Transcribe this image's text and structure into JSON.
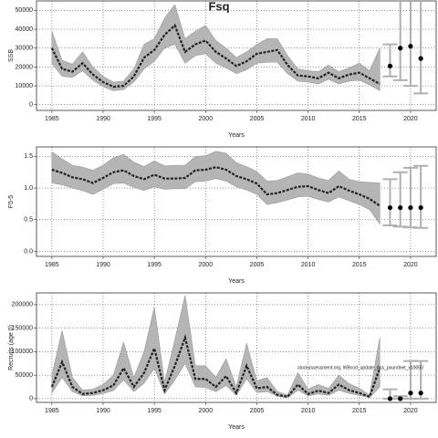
{
  "chart_data": [
    {
      "type": "line",
      "title": "Fsq",
      "ylabel": "SSB",
      "xlabel": "Years",
      "x": [
        1985,
        1986,
        1987,
        1988,
        1989,
        1990,
        1991,
        1992,
        1993,
        1994,
        1995,
        1996,
        1997,
        1998,
        1999,
        2000,
        2001,
        2002,
        2003,
        2004,
        2005,
        2006,
        2007,
        2008,
        2009,
        2010,
        2011,
        2012,
        2013,
        2014,
        2015,
        2016,
        2017
      ],
      "values": [
        30000,
        19000,
        17500,
        22000,
        16000,
        12000,
        9500,
        10000,
        15000,
        25000,
        29000,
        37000,
        42000,
        28000,
        32000,
        34000,
        28000,
        24500,
        20500,
        23000,
        27000,
        28000,
        29000,
        21000,
        15500,
        15000,
        14000,
        17000,
        14000,
        16000,
        17000,
        14000,
        11000
      ],
      "lower": [
        22000,
        15000,
        14500,
        18000,
        13000,
        9500,
        7500,
        8000,
        12000,
        19000,
        23000,
        30000,
        32000,
        22000,
        26000,
        27000,
        22000,
        19500,
        16500,
        18500,
        22000,
        22500,
        22500,
        16500,
        12500,
        12000,
        11000,
        13500,
        11000,
        12500,
        13000,
        10500,
        7500
      ],
      "upper": [
        39000,
        23500,
        21500,
        28000,
        20000,
        15000,
        12000,
        12500,
        19000,
        32000,
        35000,
        46000,
        53000,
        35000,
        39000,
        42000,
        34000,
        30000,
        25000,
        28000,
        32000,
        35000,
        35000,
        26000,
        19000,
        18000,
        17500,
        21000,
        17500,
        19500,
        22000,
        18000,
        30000
      ],
      "projection": {
        "x": [
          2018,
          2019,
          2020,
          2021
        ],
        "values": [
          20500,
          30000,
          31000,
          24500
        ],
        "lower": [
          15000,
          13000,
          10000,
          6000
        ],
        "upper": [
          32000,
          65000,
          65000,
          65000
        ]
      },
      "xlim": [
        1983.5,
        2022.5
      ],
      "ylim": [
        -3000,
        55000
      ],
      "xticks": [
        1985,
        1990,
        1995,
        2000,
        2005,
        2010,
        2015,
        2020
      ],
      "yticks": [
        0,
        10000,
        20000,
        30000,
        40000,
        50000
      ],
      "grid": true,
      "color": "#222222",
      "band_color": "#b5b5b5",
      "projection_color": "#b0b0b0"
    },
    {
      "type": "line",
      "ylabel": "F5-5",
      "xlabel": "Years",
      "x": [
        1985,
        1986,
        1987,
        1988,
        1989,
        1990,
        1991,
        1992,
        1993,
        1994,
        1995,
        1996,
        1997,
        1998,
        1999,
        2000,
        2001,
        2002,
        2003,
        2004,
        2005,
        2006,
        2007,
        2008,
        2009,
        2010,
        2011,
        2012,
        2013,
        2014,
        2015,
        2016,
        2017
      ],
      "values": [
        1.29,
        1.24,
        1.17,
        1.14,
        1.08,
        1.16,
        1.25,
        1.28,
        1.19,
        1.14,
        1.21,
        1.15,
        1.15,
        1.16,
        1.28,
        1.29,
        1.33,
        1.29,
        1.19,
        1.14,
        1.07,
        0.9,
        0.92,
        0.97,
        1.02,
        1.03,
        0.97,
        0.92,
        1.03,
        0.96,
        0.9,
        0.83,
        0.72
      ],
      "lower": [
        1.08,
        1.05,
        1.0,
        0.96,
        0.9,
        0.98,
        1.07,
        1.08,
        1.01,
        0.96,
        1.02,
        0.98,
        0.99,
        0.99,
        1.1,
        1.11,
        1.15,
        1.11,
        1.02,
        0.97,
        0.9,
        0.74,
        0.77,
        0.81,
        0.86,
        0.87,
        0.82,
        0.78,
        0.86,
        0.8,
        0.74,
        0.66,
        0.43
      ],
      "upper": [
        1.57,
        1.46,
        1.36,
        1.33,
        1.28,
        1.36,
        1.48,
        1.53,
        1.41,
        1.34,
        1.43,
        1.35,
        1.36,
        1.36,
        1.5,
        1.51,
        1.58,
        1.55,
        1.4,
        1.34,
        1.26,
        1.11,
        1.12,
        1.18,
        1.24,
        1.22,
        1.16,
        1.12,
        1.27,
        1.14,
        1.1,
        1.09,
        1.08
      ],
      "projection": {
        "x": [
          2018,
          2019,
          2020,
          2021
        ],
        "values": [
          0.69,
          0.69,
          0.69,
          0.69
        ],
        "lower": [
          0.41,
          0.39,
          0.38,
          0.37
        ],
        "upper": [
          1.14,
          1.25,
          1.32,
          1.35
        ]
      },
      "xlim": [
        1983.5,
        2022.5
      ],
      "ylim": [
        -0.08,
        1.65
      ],
      "xticks": [
        1985,
        1990,
        1995,
        2000,
        2005,
        2010,
        2015,
        2020
      ],
      "yticks": [
        {
          "value": 0,
          "label": "0.0"
        },
        {
          "value": 0.5,
          "label": "0.5"
        },
        {
          "value": 1,
          "label": "1.0"
        },
        {
          "value": 1.5,
          "label": "1.5"
        }
      ],
      "grid": true,
      "color": "#222222",
      "band_color": "#b5b5b5",
      "projection_color": "#b0b0b0"
    },
    {
      "type": "line",
      "ylabel": "Recruits (age 0)",
      "xlabel": "Years",
      "annotation": "stockassessment.org, WBcod_update_Ass_poundnet_v19050",
      "x": [
        1985,
        1986,
        1987,
        1988,
        1989,
        1990,
        1991,
        1992,
        1993,
        1994,
        1995,
        1996,
        1997,
        1998,
        1999,
        2000,
        2001,
        2002,
        2003,
        2004,
        2005,
        2006,
        2007,
        2008,
        2009,
        2010,
        2011,
        2012,
        2013,
        2014,
        2015,
        2016,
        2017
      ],
      "values": [
        25000,
        78000,
        25000,
        10000,
        12000,
        18000,
        28000,
        65000,
        25000,
        55000,
        107000,
        18000,
        70000,
        130000,
        42000,
        42000,
        25000,
        48000,
        12000,
        70000,
        22000,
        25000,
        8000,
        4000,
        30000,
        10000,
        17000,
        12000,
        30000,
        18000,
        12000,
        4000,
        65000
      ],
      "lower": [
        12000,
        45000,
        15000,
        6000,
        7000,
        11000,
        17000,
        40000,
        15000,
        33000,
        65000,
        10000,
        40000,
        75000,
        25000,
        24000,
        15000,
        28000,
        7000,
        42000,
        13000,
        15000,
        5000,
        2000,
        18000,
        6000,
        10000,
        7000,
        18000,
        11000,
        7000,
        2000,
        25000
      ],
      "upper": [
        50000,
        145000,
        45000,
        18000,
        20000,
        30000,
        50000,
        120000,
        45000,
        100000,
        195000,
        35000,
        125000,
        220000,
        70000,
        70000,
        45000,
        85000,
        25000,
        118000,
        38000,
        45000,
        15000,
        8000,
        55000,
        20000,
        30000,
        22000,
        50000,
        32000,
        22000,
        8000,
        130000
      ],
      "projection": {
        "x": [
          2018,
          2019,
          2020,
          2021
        ],
        "values": [
          0,
          0,
          12000,
          12000
        ],
        "lower": [
          0,
          0,
          0,
          0
        ],
        "upper": [
          20000,
          5000,
          80000,
          80000
        ]
      },
      "xlim": [
        1983.5,
        2022.5
      ],
      "ylim": [
        -8000,
        225000
      ],
      "xticks": [
        1985,
        1990,
        1995,
        2000,
        2005,
        2010,
        2015,
        2020
      ],
      "yticks": [
        0,
        50000,
        100000,
        150000,
        200000
      ],
      "grid": true,
      "color": "#222222",
      "band_color": "#b5b5b5",
      "projection_color": "#b0b0b0"
    }
  ]
}
